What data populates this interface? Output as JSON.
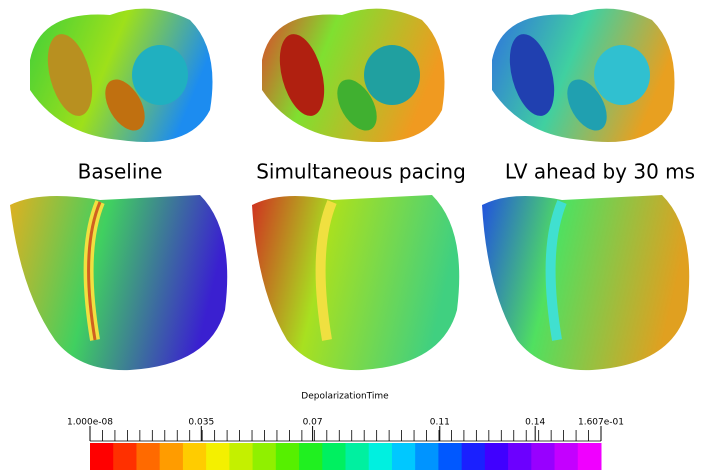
{
  "panels": [
    {
      "label": "Baseline"
    },
    {
      "label": "Simultaneous pacing"
    },
    {
      "label": "LV ahead by 30 ms"
    }
  ],
  "colorbar": {
    "title": "DepolarizationTime",
    "range": [
      1e-08,
      0.1607
    ],
    "ticks": [
      {
        "value": 1e-08,
        "label": "1.000e-08"
      },
      0.035,
      0.07,
      0.11,
      0.14,
      {
        "value": 0.1607,
        "label": "1.607e-01"
      }
    ],
    "colors": [
      "#ff0000",
      "#ff3000",
      "#ff6a00",
      "#ff9c00",
      "#ffcc00",
      "#f4f000",
      "#c4f000",
      "#90f000",
      "#56f000",
      "#20f020",
      "#00f060",
      "#00f0a0",
      "#00f0e0",
      "#00c8ff",
      "#0094ff",
      "#0058ff",
      "#1a20ff",
      "#4000ff",
      "#6c00ff",
      "#9800ff",
      "#c400ff",
      "#f000ff"
    ]
  }
}
